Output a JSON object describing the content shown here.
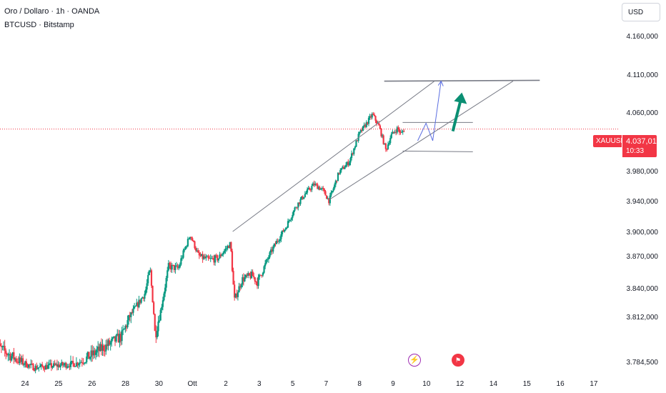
{
  "header": {
    "title": "Oro / Dollaro · 1h · OANDA",
    "subtitle": "BTCUSD · Bitstamp"
  },
  "currency_label": "USD",
  "price_tag": {
    "symbol": "XAUUSD",
    "price": "4.037,010",
    "countdown": "10:33",
    "color": "#f23645"
  },
  "events": {
    "lightning_icon": "lightning-icon",
    "flag_icon": "us-flag-icon"
  },
  "colors": {
    "up": "#089981",
    "down": "#f23645",
    "channel": "#787b86",
    "projection": "#5b6ee1",
    "arrow": "#0a8f73",
    "price_line": "#f23645"
  },
  "chart_data": {
    "type": "candlestick",
    "title": "Oro / Dollaro · 1h · OANDA",
    "y_tick_labels": [
      "4.160,000",
      "4.110,000",
      "4.060,000",
      "3.980,000",
      "3.940,000",
      "3.900,000",
      "3.870,000",
      "3.840,000",
      "3.812,000",
      "3.784,500"
    ],
    "y_ticks": [
      4160,
      4110,
      4060,
      3980,
      3940,
      3900,
      3870,
      3840,
      3812,
      3784.5
    ],
    "ylim": [
      3780,
      4175
    ],
    "x_tick_labels": [
      "24",
      "25",
      "26",
      "28",
      "30",
      "Ott",
      "2",
      "3",
      "5",
      "7",
      "8",
      "9",
      "10",
      "12",
      "14",
      "15",
      "16",
      "17"
    ],
    "x_ticks": [
      2.5,
      3.5,
      4.5,
      5.5,
      6.5,
      7.5,
      8.5,
      9.5,
      10.5,
      11.5,
      12.5,
      13.5,
      14.5,
      15.5,
      16.5,
      17.5,
      18.5,
      19.5
    ],
    "xlim": [
      1.75,
      20.25
    ],
    "last_price": 4037.01,
    "key_points": [
      {
        "x": 1.8,
        "y": 3795
      },
      {
        "x": 3.0,
        "y": 3778
      },
      {
        "x": 4.2,
        "y": 3782
      },
      {
        "x": 5.6,
        "y": 3800
      },
      {
        "x": 6.3,
        "y": 3835
      },
      {
        "x": 6.45,
        "y": 3858
      },
      {
        "x": 6.6,
        "y": 3800
      },
      {
        "x": 6.75,
        "y": 3815
      },
      {
        "x": 7.0,
        "y": 3860
      },
      {
        "x": 7.3,
        "y": 3858
      },
      {
        "x": 7.65,
        "y": 3896
      },
      {
        "x": 7.9,
        "y": 3870
      },
      {
        "x": 8.2,
        "y": 3866
      },
      {
        "x": 8.5,
        "y": 3868
      },
      {
        "x": 8.85,
        "y": 3885
      },
      {
        "x": 8.97,
        "y": 3828
      },
      {
        "x": 9.2,
        "y": 3848
      },
      {
        "x": 9.5,
        "y": 3852
      },
      {
        "x": 9.65,
        "y": 3845
      },
      {
        "x": 9.9,
        "y": 3862
      },
      {
        "x": 10.2,
        "y": 3885
      },
      {
        "x": 10.5,
        "y": 3905
      },
      {
        "x": 10.8,
        "y": 3932
      },
      {
        "x": 11.1,
        "y": 3950
      },
      {
        "x": 11.35,
        "y": 3962
      },
      {
        "x": 11.6,
        "y": 3955
      },
      {
        "x": 11.8,
        "y": 3940
      },
      {
        "x": 12.1,
        "y": 3978
      },
      {
        "x": 12.4,
        "y": 3992
      },
      {
        "x": 12.7,
        "y": 4030
      },
      {
        "x": 13.1,
        "y": 4057
      },
      {
        "x": 13.3,
        "y": 4040
      },
      {
        "x": 13.5,
        "y": 4008
      },
      {
        "x": 13.65,
        "y": 4028
      },
      {
        "x": 13.85,
        "y": 4038
      },
      {
        "x": 13.95,
        "y": 4030
      },
      {
        "x": 14.05,
        "y": 4037
      }
    ],
    "drawings": {
      "channel_upper": [
        [
          8.92,
          3900
        ],
        [
          14.95,
          4101
        ]
      ],
      "channel_lower": [
        [
          11.79,
          3941
        ],
        [
          17.3,
          4101
        ]
      ],
      "top_line": [
        [
          13.45,
          4101
        ],
        [
          18.1,
          4102
        ]
      ],
      "box_top": [
        [
          14.0,
          4046
        ],
        [
          16.1,
          4046
        ]
      ],
      "box_bottom": [
        [
          14.0,
          4007
        ],
        [
          16.1,
          4006
        ]
      ],
      "projection_path": [
        [
          14.45,
          4021
        ],
        [
          14.7,
          4045
        ],
        [
          14.9,
          4021
        ],
        [
          15.15,
          4101
        ]
      ],
      "target_arrow": [
        [
          15.5,
          4034
        ],
        [
          15.75,
          4086
        ]
      ]
    }
  }
}
